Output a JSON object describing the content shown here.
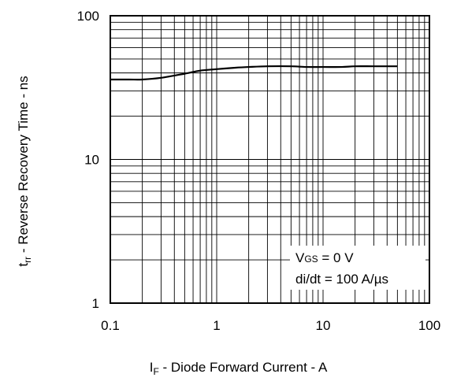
{
  "chart_data": {
    "type": "line",
    "title": "",
    "xscale": "log",
    "yscale": "log",
    "xlim": [
      0.1,
      100
    ],
    "ylim": [
      1,
      100
    ],
    "grid": true,
    "x_ticks": [
      "0.1",
      "1",
      "10",
      "100"
    ],
    "y_ticks": [
      "1",
      "10",
      "100"
    ],
    "xlabel": {
      "symbol": "I",
      "sub": "F",
      "text": " - Diode Forward Current - A"
    },
    "ylabel": {
      "symbol": "t",
      "sub": "rr",
      "text": " - Reverse Recovery Time - ns"
    },
    "annotation": {
      "line1_symbol": "V",
      "line1_sub": "GS",
      "line1_rest": " = 0 V",
      "line2": "di/dt = 100 A/µs"
    },
    "series": [
      {
        "x": [
          0.1,
          0.15,
          0.2,
          0.3,
          0.5,
          0.7,
          1,
          1.5,
          2,
          3,
          5,
          7,
          10,
          15,
          20,
          30,
          50
        ],
        "y": [
          36,
          36,
          36,
          37,
          39.5,
          41.5,
          42.5,
          43.5,
          44,
          44.5,
          44.5,
          44,
          44,
          44,
          44.5,
          44.5,
          44.5
        ]
      }
    ]
  }
}
